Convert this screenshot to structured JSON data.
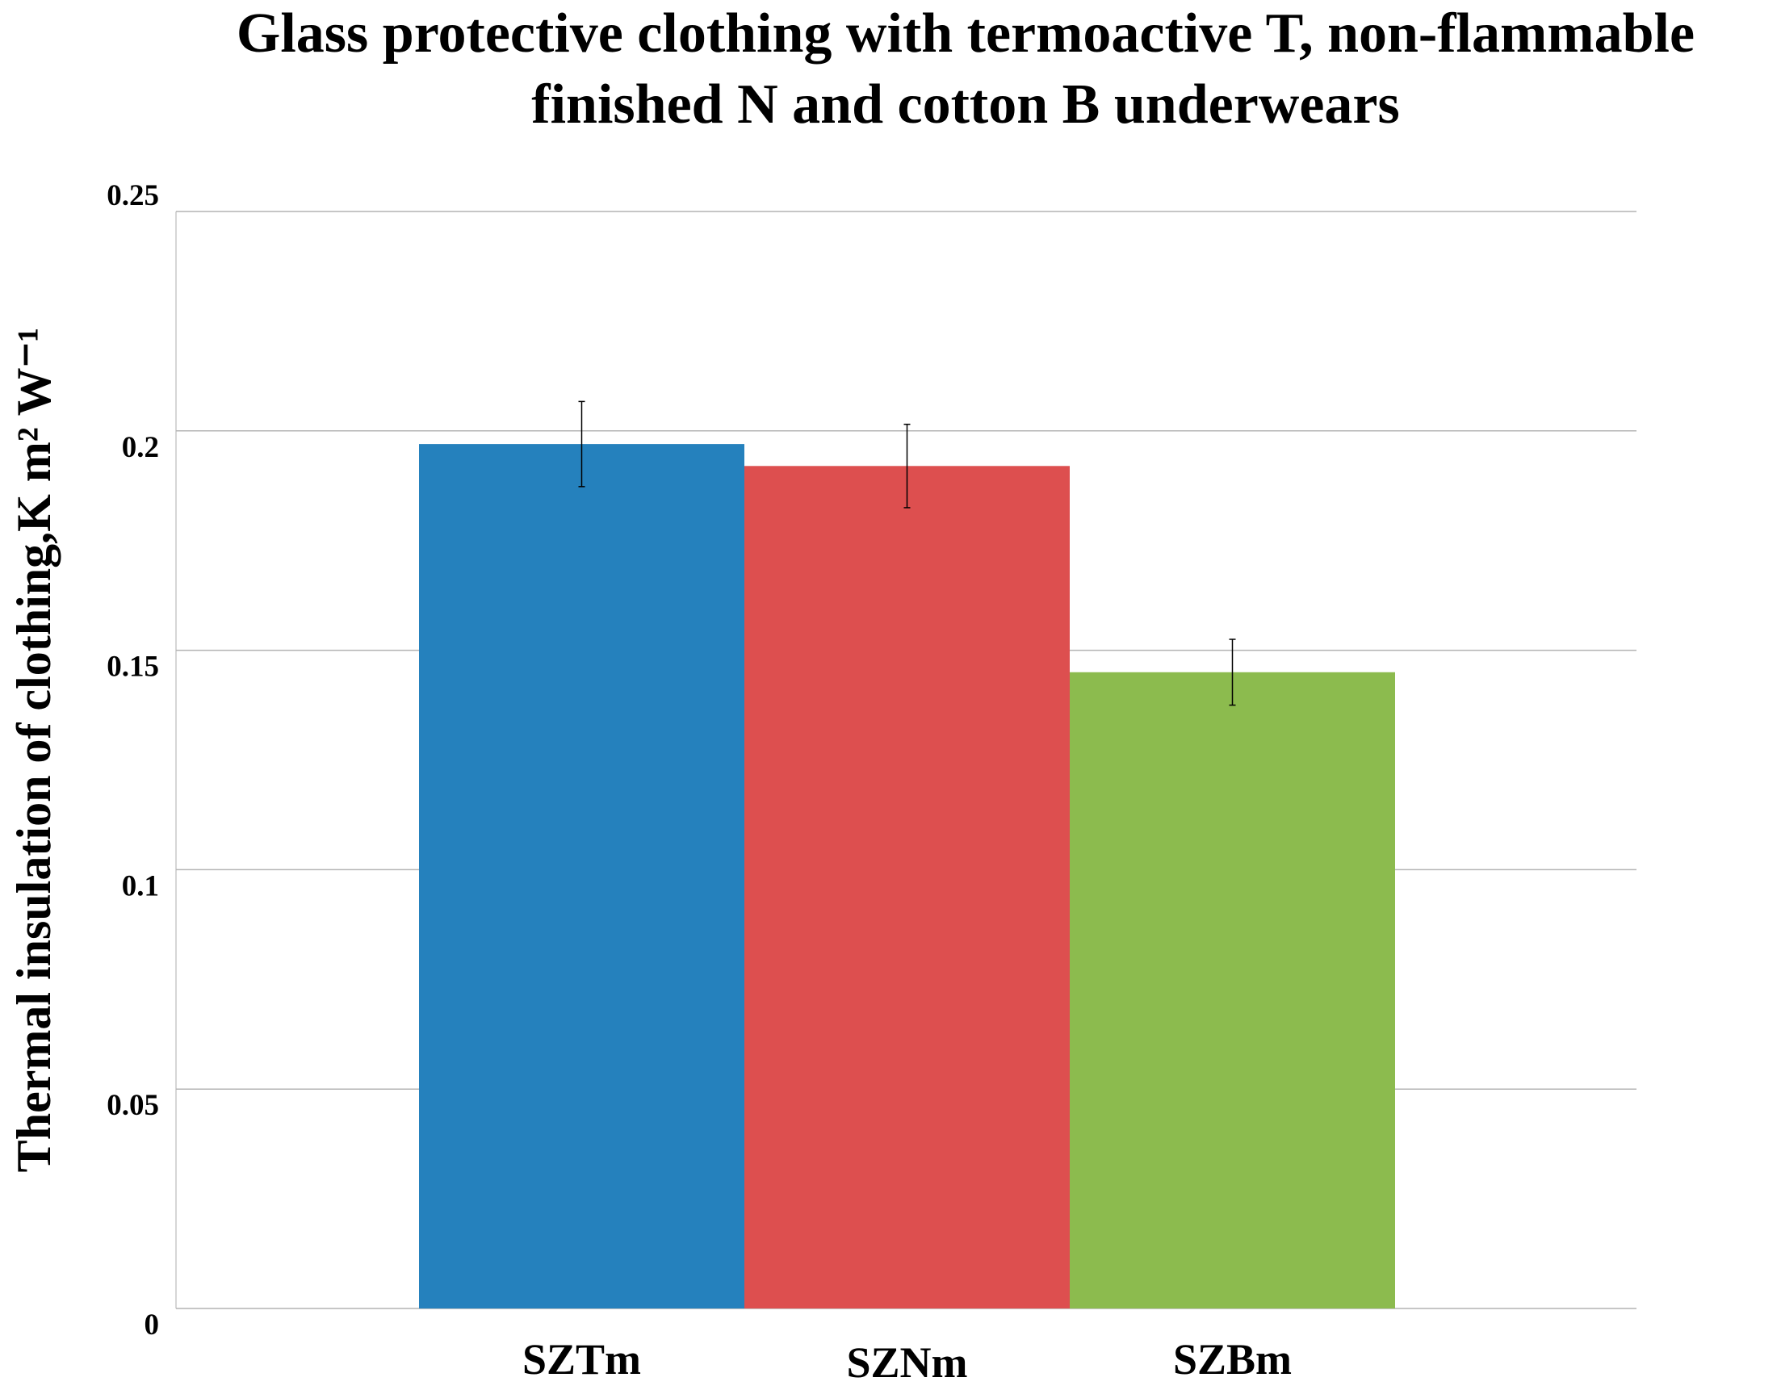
{
  "chart_data": {
    "type": "bar",
    "title": [
      "Glass protective clothing with termoactive T, non-flammable",
      "finished N and cotton B underwears"
    ],
    "y_label": "Thermal insulation of clothing,K m² W⁻¹",
    "categories": [
      "SZTm",
      "SZNm",
      "SZBm"
    ],
    "values": [
      0.197,
      0.192,
      0.145
    ],
    "errors": [
      0.0097,
      0.0095,
      0.0075
    ],
    "colors": [
      "#2581bd",
      "#dd4f4f",
      "#8cbb4e"
    ],
    "ylim": [
      0,
      0.25
    ],
    "yticks": [
      0,
      0.05,
      0.1,
      0.15,
      0.2,
      0.25
    ],
    "grid": true
  }
}
